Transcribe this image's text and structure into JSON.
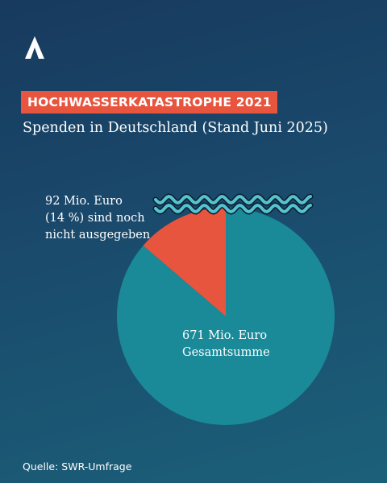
{
  "header": {
    "logo_icon": "ard-logo-icon",
    "kicker": "HOCHWASSERKATASTROPHE 2021",
    "subtitle": "Spenden in Deutschland (Stand Juni 2025)"
  },
  "chart_data": {
    "type": "pie",
    "title": "Spenden in Deutschland (Stand Juni 2025)",
    "total": 671,
    "slices": [
      {
        "value": 92,
        "share": 14,
        "color": "#e8553f"
      },
      {
        "value": 579,
        "share": 86,
        "color": "#1a8a99"
      }
    ],
    "annotations": {
      "not_spent": [
        "92 Mio. Euro",
        "(14 %) sind noch",
        "nicht ausgegeben"
      ],
      "total": [
        "671 Mio. Euro",
        "Gesamtsumme"
      ]
    },
    "wave_icon": "water-waves-icon",
    "colors": {
      "red": "#e8553f",
      "teal": "#1a8a99",
      "wave": "#56c2cc",
      "wave_outline": "#0b1e33"
    }
  },
  "footer": {
    "source": "Quelle: SWR-Umfrage"
  }
}
